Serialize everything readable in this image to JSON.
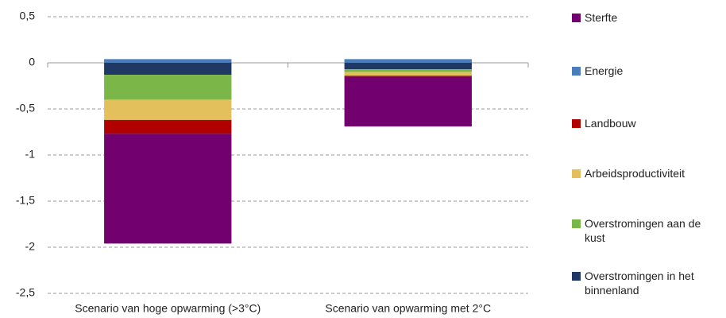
{
  "chart_data": {
    "type": "stacked_bar",
    "categories": [
      "Scenario van hoge opwarming (>3°C)",
      "Scenario van opwarming met 2°C"
    ],
    "series": [
      {
        "name": "Sterfte",
        "color": "#72006e",
        "values": [
          -1.19,
          -0.54
        ]
      },
      {
        "name": "Energie",
        "color": "#4a7ebb",
        "values": [
          0.04,
          0.04
        ]
      },
      {
        "name": "Landbouw",
        "color": "#b00000",
        "values": [
          -0.15,
          -0.01
        ]
      },
      {
        "name": "Arbeidsproductiviteit",
        "color": "#e3c05b",
        "values": [
          -0.22,
          -0.04
        ]
      },
      {
        "name": "Overstromingen aan de kust",
        "color": "#7ab648",
        "values": [
          -0.27,
          -0.03
        ]
      },
      {
        "name": "Overstromingen in het binnenland",
        "color": "#1f3864",
        "values": [
          -0.13,
          -0.07
        ]
      }
    ],
    "ylim": [
      -2.5,
      0.5
    ],
    "yticks": [
      {
        "value": 0.5,
        "label": "0,5"
      },
      0,
      {
        "value": -0.5,
        "label": "-0,5"
      },
      -1,
      {
        "value": -1.5,
        "label": "-1,5"
      },
      -2,
      {
        "value": -2.5,
        "label": "-2,5"
      }
    ],
    "grid": true
  }
}
